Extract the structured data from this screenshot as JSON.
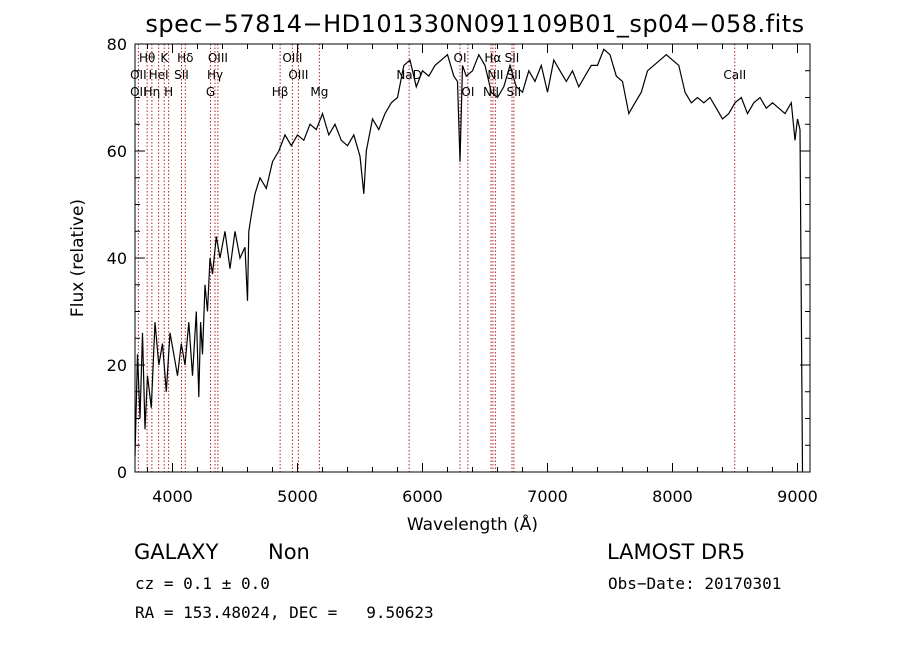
{
  "title": "spec−57814−HD101330N091109B01_sp04−058.fits",
  "info": {
    "class": "GALAXY",
    "subclass": "Non",
    "survey": "LAMOST DR5",
    "cz_line": "cz = 0.1 ± 0.0",
    "obs_date_line": "Obs−Date: 20170301",
    "radec_line": "RA = 153.48024, DEC =   9.50623"
  },
  "colors": {
    "spectrum": "#000000",
    "line_markers": "#b22222",
    "axes": "#000000"
  },
  "chart_data": {
    "type": "line",
    "title": "spec−57814−HD101330N091109B01_sp04−058.fits",
    "xlabel": "Wavelength (Å)",
    "ylabel": "Flux (relative)",
    "xlim": [
      3700,
      9100
    ],
    "ylim": [
      0,
      80
    ],
    "xticks": [
      4000,
      5000,
      6000,
      7000,
      8000,
      9000
    ],
    "yticks": [
      0,
      20,
      40,
      60,
      80
    ],
    "grid": false,
    "series": [
      {
        "x": [
          3700,
          3720,
          3740,
          3760,
          3780,
          3800,
          3830,
          3860,
          3890,
          3920,
          3950,
          3980,
          4010,
          4040,
          4070,
          4100,
          4130,
          4160,
          4190,
          4210,
          4225,
          4240,
          4260,
          4280,
          4300,
          4320,
          4350,
          4380,
          4420,
          4460,
          4500,
          4540,
          4580,
          4600,
          4610,
          4630,
          4660,
          4700,
          4750,
          4800,
          4850,
          4900,
          4950,
          5000,
          5050,
          5100,
          5150,
          5200,
          5250,
          5300,
          5350,
          5400,
          5450,
          5500,
          5530,
          5550,
          5600,
          5650,
          5700,
          5750,
          5800,
          5850,
          5900,
          5950,
          6000,
          6050,
          6100,
          6150,
          6200,
          6250,
          6280,
          6300,
          6320,
          6350,
          6400,
          6450,
          6500,
          6550,
          6600,
          6650,
          6700,
          6750,
          6800,
          6850,
          6900,
          6950,
          7000,
          7050,
          7100,
          7150,
          7200,
          7250,
          7300,
          7350,
          7400,
          7450,
          7500,
          7550,
          7600,
          7650,
          7700,
          7750,
          7800,
          7850,
          7900,
          7950,
          8000,
          8050,
          8100,
          8150,
          8200,
          8250,
          8300,
          8350,
          8400,
          8450,
          8500,
          8550,
          8600,
          8650,
          8700,
          8750,
          8800,
          8850,
          8900,
          8950,
          8980,
          9000,
          9020,
          9040
        ],
        "y": [
          3,
          22,
          10,
          26,
          8,
          18,
          12,
          28,
          20,
          24,
          15,
          26,
          22,
          18,
          24,
          20,
          28,
          18,
          30,
          14,
          28,
          22,
          35,
          30,
          40,
          37,
          44,
          40,
          45,
          38,
          45,
          40,
          42,
          32,
          45,
          48,
          52,
          55,
          53,
          58,
          60,
          63,
          61,
          63,
          62,
          65,
          64,
          67,
          63,
          65,
          62,
          61,
          63,
          59,
          52,
          60,
          66,
          64,
          67,
          69,
          70,
          76,
          77,
          72,
          75,
          74,
          76,
          77,
          78,
          74,
          73,
          58,
          76,
          74,
          75,
          78,
          76,
          71,
          70,
          72,
          76,
          72,
          71,
          75,
          73,
          76,
          71,
          77,
          75,
          73,
          75,
          72,
          74,
          76,
          76,
          79,
          78,
          74,
          73,
          67,
          69,
          71,
          75,
          76,
          77,
          78,
          77,
          76,
          71,
          69,
          70,
          69,
          70,
          68,
          66,
          67,
          69,
          70,
          67,
          69,
          70,
          68,
          69,
          68,
          67,
          69,
          62,
          66,
          64,
          0
        ]
      }
    ],
    "annotations": [
      {
        "label": "OII",
        "wavelength": 3727,
        "row": 3
      },
      {
        "label": "OII",
        "wavelength": 3727,
        "row": 2
      },
      {
        "label": "Hθ",
        "wavelength": 3797,
        "row": 1
      },
      {
        "label": "Hη",
        "wavelength": 3835,
        "row": 3
      },
      {
        "label": "HeI",
        "wavelength": 3889,
        "row": 2
      },
      {
        "label": "K",
        "wavelength": 3934,
        "row": 1
      },
      {
        "label": "H",
        "wavelength": 3969,
        "row": 3
      },
      {
        "label": "Hδ",
        "wavelength": 4102,
        "row": 1
      },
      {
        "label": "SII",
        "wavelength": 4072,
        "row": 2
      },
      {
        "label": "OIII",
        "wavelength": 4363,
        "row": 1
      },
      {
        "label": "Hγ",
        "wavelength": 4340,
        "row": 2
      },
      {
        "label": "G",
        "wavelength": 4304,
        "row": 3
      },
      {
        "label": "Hβ",
        "wavelength": 4861,
        "row": 3
      },
      {
        "label": "OIII",
        "wavelength": 4959,
        "row": 1
      },
      {
        "label": "OIII",
        "wavelength": 5007,
        "row": 2
      },
      {
        "label": "Mg",
        "wavelength": 5175,
        "row": 3
      },
      {
        "label": "NaD",
        "wavelength": 5893,
        "row": 2
      },
      {
        "label": "OI",
        "wavelength": 6300,
        "row": 1
      },
      {
        "label": "OI",
        "wavelength": 6363,
        "row": 3
      },
      {
        "label": "Hα",
        "wavelength": 6563,
        "row": 1
      },
      {
        "label": "NII",
        "wavelength": 6583,
        "row": 2
      },
      {
        "label": "NII",
        "wavelength": 6548,
        "row": 3
      },
      {
        "label": "SII",
        "wavelength": 6716,
        "row": 1
      },
      {
        "label": "SII",
        "wavelength": 6731,
        "row": 2
      },
      {
        "label": "SII",
        "wavelength": 6731,
        "row": 3
      },
      {
        "label": "CaII",
        "wavelength": 8498,
        "row": 2
      }
    ],
    "marker_lines": [
      3727,
      3797,
      3835,
      3889,
      3934,
      3969,
      4072,
      4102,
      4304,
      4340,
      4363,
      4861,
      4959,
      5007,
      5175,
      5893,
      6300,
      6363,
      6548,
      6563,
      6583,
      6716,
      6731,
      8498
    ]
  }
}
